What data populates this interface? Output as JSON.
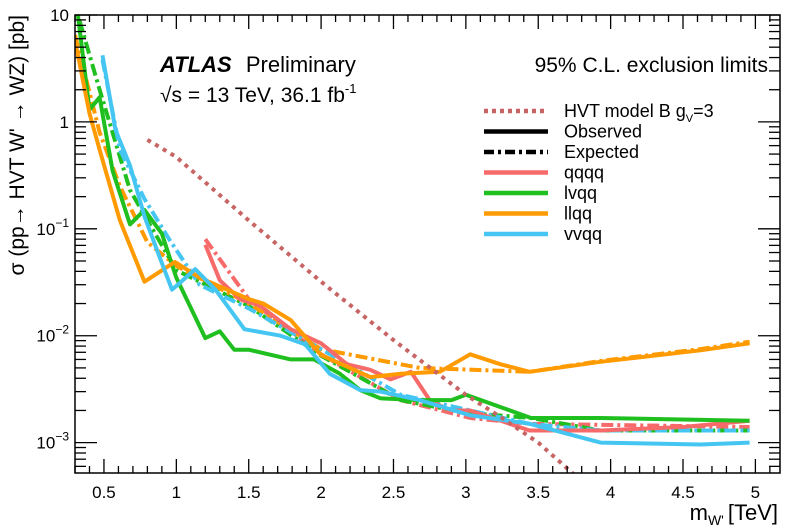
{
  "chart_data": {
    "type": "line",
    "title": "95% C.L. exclusion limits",
    "experiment": "ATLAS",
    "experiment_status": "Preliminary",
    "energy_label": "√s = 13 TeV, 36.1 fb",
    "energy_label_sup": "-1",
    "xlabel": "m",
    "xlabel_sub": "W'",
    "xlabel_unit": "[TeV]",
    "ylabel": "σ (pp→ HVT W' → WZ) [pb]",
    "xlim": [
      0.3,
      5.17
    ],
    "ylim": [
      0.00052,
      10
    ],
    "yscale": "log",
    "x_ticks": [
      "0.5",
      "1",
      "1.5",
      "2",
      "2.5",
      "3",
      "3.5",
      "4",
      "4.5",
      "5"
    ],
    "y_ticks": [
      {
        "base": "10",
        "exp": ""
      },
      {
        "base": "1",
        "exp": ""
      },
      {
        "base": "10",
        "exp": "−1"
      },
      {
        "base": "10",
        "exp": "−2"
      },
      {
        "base": "10",
        "exp": "−3"
      }
    ],
    "legend_position": "top-right",
    "legend": [
      {
        "label": "HVT model B g",
        "sub": "V",
        "suffix": "=3",
        "style": "dotted",
        "color": "#c86464"
      },
      {
        "label": "Observed",
        "style": "solid",
        "color": "#000000"
      },
      {
        "label": "Expected",
        "style": "dashdot",
        "color": "#000000"
      },
      {
        "label": "qqqq",
        "style": "solid",
        "color": "#f76a6a"
      },
      {
        "label": "lvqq",
        "style": "solid",
        "color": "#1fbf1f"
      },
      {
        "label": "llqq",
        "style": "solid",
        "color": "#ff9a00"
      },
      {
        "label": "vvqq",
        "style": "solid",
        "color": "#45c6f2"
      }
    ],
    "theory": {
      "name": "HVT model B gV=3",
      "color": "#c86464",
      "x": [
        0.8,
        1.0,
        1.5,
        2.0,
        2.5,
        3.0,
        3.25,
        3.5,
        3.75
      ],
      "y": [
        0.68,
        0.47,
        0.12,
        0.032,
        0.0091,
        0.0028,
        0.0017,
        0.001,
        0.0005
      ]
    },
    "series": [
      {
        "name": "qqqq",
        "color": "#f76a6a",
        "observed": {
          "x": [
            1.2,
            1.3,
            1.44,
            1.58,
            1.79,
            2.0,
            2.18,
            2.34,
            2.48,
            2.62,
            2.75,
            2.89,
            3.03,
            3.44,
            3.93,
            4.5,
            4.96
          ],
          "y": [
            0.071,
            0.033,
            0.022,
            0.019,
            0.0115,
            0.0085,
            0.0054,
            0.0048,
            0.0039,
            0.0046,
            0.0025,
            0.002,
            0.002,
            0.0013,
            0.0013,
            0.0014,
            0.0016
          ]
        },
        "expected": {
          "x": [
            1.2,
            1.5,
            2.0,
            2.55,
            3.03,
            3.44,
            4.96
          ],
          "y": [
            0.08,
            0.022,
            0.0067,
            0.0025,
            0.0017,
            0.0015,
            0.0014
          ]
        }
      },
      {
        "name": "lvqq",
        "color": "#1fbf1f",
        "observed": {
          "x": [
            0.32,
            0.4,
            0.47,
            0.56,
            0.68,
            0.78,
            0.9,
            1.0,
            1.2,
            1.3,
            1.4,
            1.5,
            1.79,
            1.95,
            2.13,
            2.27,
            2.41,
            2.68,
            2.9,
            3.0,
            3.45,
            3.93,
            4.96
          ],
          "y": [
            10,
            1.3,
            1.7,
            0.35,
            0.11,
            0.15,
            0.09,
            0.035,
            0.0095,
            0.011,
            0.0074,
            0.0074,
            0.006,
            0.006,
            0.0044,
            0.0031,
            0.0026,
            0.0025,
            0.0025,
            0.0028,
            0.0017,
            0.0017,
            0.0016
          ]
        },
        "expected": {
          "x": [
            0.33,
            0.47,
            0.68,
            1.0,
            1.5,
            2.0,
            2.55,
            3.0,
            3.45,
            3.93,
            4.96
          ],
          "y": [
            9,
            2.0,
            0.23,
            0.041,
            0.019,
            0.0065,
            0.0025,
            0.0019,
            0.0017,
            0.0013,
            0.0013
          ]
        }
      },
      {
        "name": "llqq",
        "color": "#ff9a00",
        "observed": {
          "x": [
            0.3,
            0.4,
            0.47,
            0.61,
            0.78,
            0.99,
            1.16,
            1.5,
            1.6,
            1.79,
            2.0,
            2.34,
            2.55,
            2.82,
            3.03,
            3.24,
            3.44,
            3.93,
            4.62,
            4.96
          ],
          "y": [
            5.8,
            1.2,
            0.55,
            0.12,
            0.032,
            0.049,
            0.035,
            0.022,
            0.02,
            0.014,
            0.0066,
            0.0041,
            0.0044,
            0.0046,
            0.0067,
            0.0054,
            0.0046,
            0.0057,
            0.0073,
            0.0085
          ]
        },
        "expected": {
          "x": [
            0.3,
            0.47,
            0.61,
            0.8,
            1.0,
            1.5,
            2.0,
            2.68,
            3.44,
            3.93,
            4.62,
            4.96
          ],
          "y": [
            6.5,
            0.8,
            0.25,
            0.075,
            0.045,
            0.02,
            0.0075,
            0.005,
            0.0046,
            0.0058,
            0.0075,
            0.0088
          ]
        }
      },
      {
        "name": "vvqq",
        "color": "#45c6f2",
        "observed": {
          "x": [
            0.49,
            0.58,
            0.68,
            0.78,
            0.89,
            0.97,
            1.01,
            1.13,
            1.27,
            1.47,
            1.72,
            1.89,
            2.06,
            2.27,
            2.41,
            2.68,
            3.03,
            3.44,
            3.93,
            4.62,
            4.96
          ],
          "y": [
            4.2,
            0.84,
            0.39,
            0.13,
            0.052,
            0.027,
            0.03,
            0.042,
            0.027,
            0.0115,
            0.01,
            0.0083,
            0.0044,
            0.0031,
            0.003,
            0.0025,
            0.0018,
            0.0015,
            0.001,
            0.00096,
            0.001
          ]
        },
        "expected": {
          "x": [
            0.49,
            0.61,
            0.78,
            0.95,
            1.16,
            1.5,
            2.0,
            2.55,
            3.03,
            3.44,
            3.93,
            4.96
          ],
          "y": [
            3.8,
            0.55,
            0.19,
            0.08,
            0.03,
            0.018,
            0.0075,
            0.0028,
            0.002,
            0.0015,
            0.0013,
            0.0013
          ]
        }
      }
    ]
  }
}
